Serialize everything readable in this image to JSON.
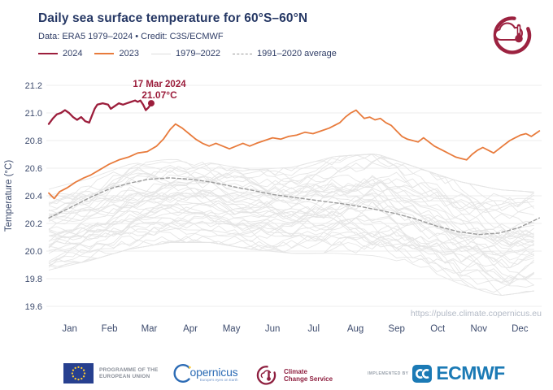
{
  "header": {
    "title": "Daily sea surface temperature for 60°S–60°N",
    "subtitle": "Data: ERA5 1979–2024  •  Credit: C3S/ECMWF",
    "legend": [
      {
        "label": "2024",
        "color": "#9c1e3c",
        "dashed": false,
        "thickness": 2.6
      },
      {
        "label": "2023",
        "color": "#e87b3c",
        "dashed": false,
        "thickness": 2.2
      },
      {
        "label": "1979–2022",
        "color": "#dddddd",
        "dashed": false,
        "thickness": 1.5
      },
      {
        "label": "1991–2020 average",
        "color": "#999999",
        "dashed": true,
        "thickness": 1.5
      }
    ]
  },
  "annotation": {
    "date": "17 Mar 2024",
    "value": "21.07°C"
  },
  "watermark": "https://pulse.climate.copernicus.eu",
  "chart_data": {
    "type": "line",
    "title": "Daily sea surface temperature for 60°S–60°N",
    "xlabel": "",
    "ylabel": "Temperature (°C)",
    "ylim": [
      19.6,
      21.2
    ],
    "yticks": [
      19.6,
      19.8,
      20.0,
      20.2,
      20.4,
      20.6,
      20.8,
      21.0,
      21.2
    ],
    "x_unit": "day_of_year",
    "month_labels": [
      "Jan",
      "Feb",
      "Mar",
      "Apr",
      "May",
      "Jun",
      "Jul",
      "Aug",
      "Sep",
      "Oct",
      "Nov",
      "Dec"
    ],
    "month_start_days": [
      0,
      31,
      59,
      90,
      120,
      151,
      181,
      212,
      243,
      273,
      304,
      334,
      365
    ],
    "grid": "horizontal-only",
    "legend_position": "top-left",
    "series": [
      {
        "name": "2024",
        "color": "#9c1e3c",
        "width": 2.3,
        "dashed": false,
        "endpoint_dot": true,
        "points": [
          [
            0,
            20.92
          ],
          [
            3,
            20.96
          ],
          [
            6,
            20.99
          ],
          [
            9,
            21.0
          ],
          [
            12,
            21.02
          ],
          [
            15,
            21.0
          ],
          [
            18,
            20.97
          ],
          [
            21,
            20.95
          ],
          [
            24,
            20.97
          ],
          [
            27,
            20.94
          ],
          [
            30,
            20.93
          ],
          [
            32,
            20.98
          ],
          [
            34,
            21.03
          ],
          [
            36,
            21.06
          ],
          [
            40,
            21.07
          ],
          [
            44,
            21.06
          ],
          [
            46,
            21.03
          ],
          [
            49,
            21.05
          ],
          [
            52,
            21.07
          ],
          [
            55,
            21.06
          ],
          [
            58,
            21.07
          ],
          [
            61,
            21.08
          ],
          [
            64,
            21.09
          ],
          [
            66,
            21.08
          ],
          [
            68,
            21.09
          ],
          [
            70,
            21.06
          ],
          [
            72,
            21.02
          ],
          [
            74,
            21.04
          ],
          [
            76,
            21.07
          ]
        ]
      },
      {
        "name": "2023",
        "color": "#e87b3c",
        "width": 1.8,
        "dashed": false,
        "endpoint_dot": false,
        "points": [
          [
            0,
            20.42
          ],
          [
            4,
            20.38
          ],
          [
            8,
            20.43
          ],
          [
            14,
            20.46
          ],
          [
            20,
            20.5
          ],
          [
            26,
            20.53
          ],
          [
            31,
            20.55
          ],
          [
            38,
            20.59
          ],
          [
            45,
            20.63
          ],
          [
            52,
            20.66
          ],
          [
            59,
            20.68
          ],
          [
            66,
            20.71
          ],
          [
            73,
            20.72
          ],
          [
            80,
            20.76
          ],
          [
            85,
            20.81
          ],
          [
            90,
            20.88
          ],
          [
            94,
            20.92
          ],
          [
            99,
            20.89
          ],
          [
            104,
            20.85
          ],
          [
            109,
            20.81
          ],
          [
            114,
            20.78
          ],
          [
            119,
            20.76
          ],
          [
            124,
            20.78
          ],
          [
            129,
            20.76
          ],
          [
            134,
            20.74
          ],
          [
            139,
            20.76
          ],
          [
            144,
            20.78
          ],
          [
            149,
            20.76
          ],
          [
            154,
            20.78
          ],
          [
            160,
            20.8
          ],
          [
            166,
            20.82
          ],
          [
            172,
            20.81
          ],
          [
            178,
            20.83
          ],
          [
            184,
            20.84
          ],
          [
            190,
            20.86
          ],
          [
            196,
            20.85
          ],
          [
            202,
            20.87
          ],
          [
            208,
            20.89
          ],
          [
            212,
            20.91
          ],
          [
            216,
            20.93
          ],
          [
            220,
            20.97
          ],
          [
            224,
            21.0
          ],
          [
            228,
            21.02
          ],
          [
            231,
            20.99
          ],
          [
            234,
            20.96
          ],
          [
            238,
            20.97
          ],
          [
            242,
            20.95
          ],
          [
            246,
            20.96
          ],
          [
            250,
            20.93
          ],
          [
            254,
            20.91
          ],
          [
            258,
            20.87
          ],
          [
            262,
            20.83
          ],
          [
            266,
            20.81
          ],
          [
            270,
            20.8
          ],
          [
            274,
            20.79
          ],
          [
            278,
            20.82
          ],
          [
            282,
            20.79
          ],
          [
            286,
            20.76
          ],
          [
            290,
            20.74
          ],
          [
            294,
            20.72
          ],
          [
            298,
            20.7
          ],
          [
            302,
            20.68
          ],
          [
            306,
            20.67
          ],
          [
            310,
            20.66
          ],
          [
            314,
            20.7
          ],
          [
            318,
            20.73
          ],
          [
            322,
            20.75
          ],
          [
            326,
            20.73
          ],
          [
            330,
            20.71
          ],
          [
            334,
            20.74
          ],
          [
            338,
            20.77
          ],
          [
            342,
            20.8
          ],
          [
            346,
            20.82
          ],
          [
            350,
            20.84
          ],
          [
            354,
            20.85
          ],
          [
            358,
            20.83
          ],
          [
            361,
            20.85
          ],
          [
            364,
            20.87
          ]
        ]
      },
      {
        "name": "1991–2020 average",
        "color": "#9b9b9b",
        "width": 1.4,
        "dashed": true,
        "endpoint_dot": false,
        "points": [
          [
            0,
            20.24
          ],
          [
            15,
            20.31
          ],
          [
            31,
            20.39
          ],
          [
            45,
            20.45
          ],
          [
            59,
            20.49
          ],
          [
            74,
            20.52
          ],
          [
            90,
            20.53
          ],
          [
            105,
            20.52
          ],
          [
            120,
            20.5
          ],
          [
            135,
            20.47
          ],
          [
            151,
            20.44
          ],
          [
            166,
            20.41
          ],
          [
            181,
            20.39
          ],
          [
            196,
            20.37
          ],
          [
            212,
            20.35
          ],
          [
            227,
            20.33
          ],
          [
            243,
            20.3
          ],
          [
            258,
            20.27
          ],
          [
            273,
            20.23
          ],
          [
            288,
            20.18
          ],
          [
            304,
            20.14
          ],
          [
            319,
            20.12
          ],
          [
            334,
            20.13
          ],
          [
            349,
            20.17
          ],
          [
            364,
            20.24
          ]
        ]
      }
    ],
    "background_years": {
      "name": "1979–2022",
      "color": "#e5e5e5",
      "count": 44,
      "seed": 11,
      "envelope_days": [
        0,
        31,
        59,
        90,
        120,
        151,
        181,
        212,
        243,
        273,
        304,
        334,
        364
      ],
      "envelope_min": [
        19.85,
        19.92,
        20.0,
        20.05,
        20.05,
        20.0,
        19.97,
        19.97,
        19.95,
        19.88,
        19.75,
        19.66,
        19.7
      ],
      "envelope_max": [
        20.46,
        20.54,
        20.64,
        20.68,
        20.65,
        20.6,
        20.62,
        20.7,
        20.72,
        20.62,
        20.52,
        20.46,
        20.44
      ]
    }
  },
  "footer": {
    "eu_label_line1": "PROGRAMME OF THE",
    "eu_label_line2": "EUROPEAN UNION",
    "copernicus_wordmark": "opernicus",
    "copernicus_tagline": "Europe's eyes on Earth",
    "c3s_line1": "Climate",
    "c3s_line2": "Change Service",
    "implemented_by": "IMPLEMENTED BY",
    "ecmwf_wordmark": "ECMWF"
  },
  "colors": {
    "title_navy": "#253764",
    "axis_text": "#3e4c6e",
    "grid": "#ededee",
    "watermark_gray": "#b3bac6",
    "accent_2024": "#9c1e3c",
    "accent_2023": "#e87b3c",
    "spaghetti_gray": "#e5e5e5",
    "average_gray": "#9b9b9b",
    "eu_blue": "#27408f",
    "star_yellow": "#ffcc33",
    "copernicus_blue": "#2d6cb5",
    "c3s_maroon": "#8e1f3f",
    "ecmwf_blue": "#1b7ab5"
  }
}
